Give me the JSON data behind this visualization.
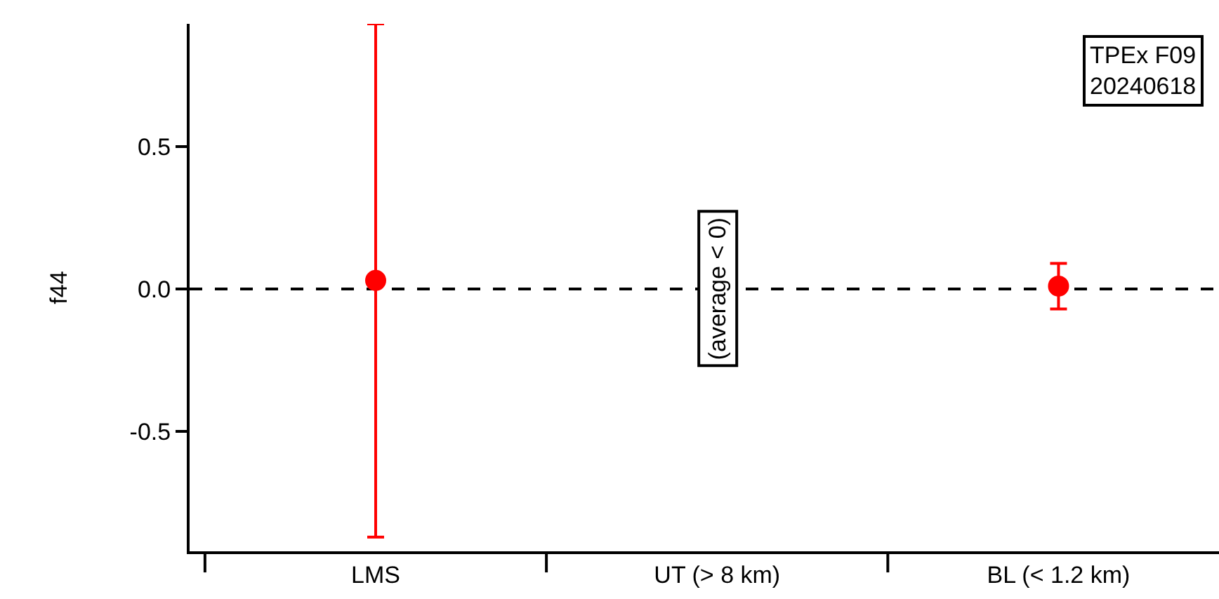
{
  "chart_data": {
    "type": "scatter",
    "ylabel": "f44",
    "categories": [
      "LMS",
      "UT (> 8 km)",
      "BL (< 1.2 km)"
    ],
    "series": [
      {
        "color": "#ff0000",
        "values": [
          0.03,
          null,
          0.01
        ],
        "errors": [
          [
            -0.87,
            0.93
          ],
          null,
          [
            -0.07,
            0.09
          ]
        ]
      }
    ],
    "ylim": [
      -0.92,
      0.93
    ],
    "yticks": [
      {
        "value": -0.5,
        "label": "-0.5"
      },
      {
        "value": 0,
        "label": "0.0"
      },
      0.5
    ],
    "ref_lines": [
      {
        "axis": "y",
        "value": 0,
        "color": "#000000",
        "line_style": "dashed"
      }
    ],
    "annotations": [
      "TPEx F09\n20240618",
      {
        "text": "(average < 0)",
        "x": "UT (> 8 km)",
        "y": 0
      }
    ],
    "marker": "circle",
    "grid": false
  }
}
